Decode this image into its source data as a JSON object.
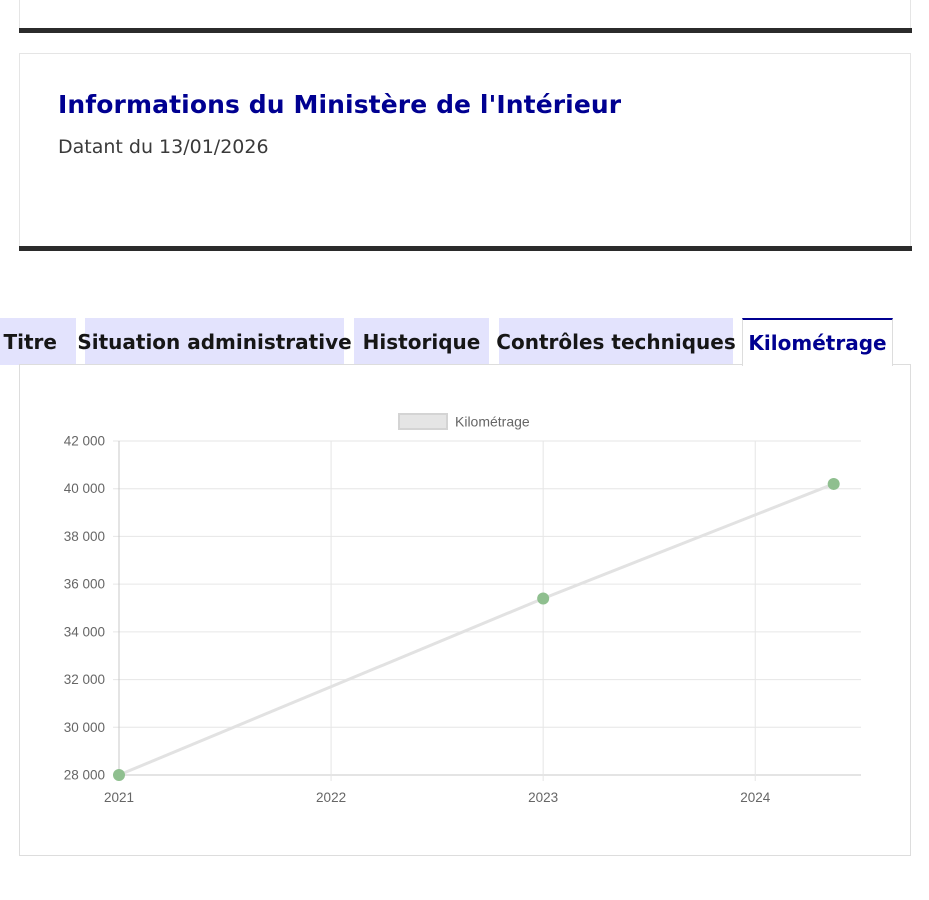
{
  "info": {
    "title": "Informations du Ministère de l'Intérieur",
    "date": "Datant du 13/01/2026"
  },
  "tabs": [
    {
      "label": "Titre",
      "active": false
    },
    {
      "label": "Situation administrative",
      "active": false
    },
    {
      "label": "Historique",
      "active": false
    },
    {
      "label": "Contrôles techniques",
      "active": false
    },
    {
      "label": "Kilométrage",
      "active": true
    }
  ],
  "colors": {
    "accent": "#000091",
    "tab_background": "#e3e3fd",
    "line": "#e2e2e2",
    "point": "#8fbf8f"
  },
  "chart_data": {
    "type": "line",
    "title": "",
    "xlabel": "",
    "ylabel": "",
    "legend": {
      "label": "Kilométrage",
      "placement": "top"
    },
    "x_ticks": [
      "2021",
      "2022",
      "2023",
      "2024"
    ],
    "y_ticks": [
      "28 000",
      "30 000",
      "32 000",
      "34 000",
      "36 000",
      "38 000",
      "40 000",
      "42 000"
    ],
    "xlim": [
      "2021-01-01",
      "2024-07-01"
    ],
    "ylim": [
      28000,
      42000
    ],
    "grid": true,
    "series": [
      {
        "name": "Kilométrage",
        "points": [
          {
            "x": "2021-01-01",
            "y": 28000
          },
          {
            "x": "2023-01-01",
            "y": 35400
          },
          {
            "x": "2024-05-15",
            "y": 40200
          }
        ]
      }
    ]
  }
}
